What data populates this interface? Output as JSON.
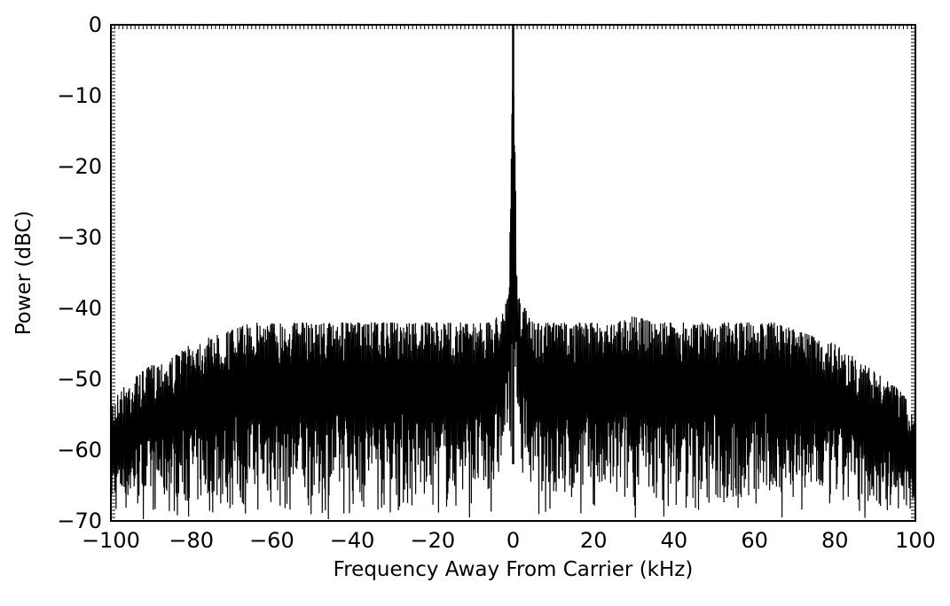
{
  "chart_data": {
    "type": "line",
    "title": "",
    "xlabel": "Frequency Away From Carrier (kHz)",
    "ylabel": "Power (dBC)",
    "xlim": [
      -100,
      100
    ],
    "ylim": [
      -70,
      0
    ],
    "xticks": [
      "-100",
      "-80",
      "-60",
      "-40",
      "-20",
      "0",
      "20",
      "40",
      "60",
      "80",
      "100"
    ],
    "yticks": [
      "0",
      "-10",
      "-20",
      "-30",
      "-40",
      "-50",
      "-60",
      "-70"
    ],
    "grid": false,
    "line_color": "#000000",
    "series": [
      {
        "x": [
          -100,
          -95,
          -90,
          -85,
          -80,
          -75,
          -70,
          -65,
          -60,
          -55,
          -50,
          -45,
          -40,
          -35,
          -30,
          -25,
          -20,
          -15,
          -10,
          -5,
          -1,
          0,
          1,
          5,
          10,
          15,
          20,
          25,
          30,
          35,
          40,
          45,
          50,
          55,
          60,
          65,
          70,
          75,
          80,
          85,
          90,
          95,
          100
        ],
        "upper_envelope": [
          -53,
          -50,
          -48,
          -47,
          -45,
          -44,
          -43,
          -42,
          -42,
          -42,
          -42,
          -42,
          -42,
          -42,
          -42,
          -42,
          -42,
          -42,
          -42,
          -42,
          -38,
          0,
          -38,
          -42,
          -42,
          -42,
          -42,
          -42,
          -41,
          -42,
          -42,
          -42,
          -42,
          -42,
          -42,
          -42,
          -43,
          -44,
          -45,
          -47,
          -49,
          -51,
          -54
        ],
        "lower_envelope": [
          -70,
          -70,
          -70,
          -70,
          -70,
          -70,
          -70,
          -70,
          -70,
          -70,
          -70,
          -70,
          -70,
          -70,
          -70,
          -70,
          -70,
          -70,
          -70,
          -70,
          -60,
          -60,
          -60,
          -70,
          -70,
          -70,
          -70,
          -70,
          -70,
          -70,
          -70,
          -70,
          -70,
          -70,
          -70,
          -70,
          -70,
          -70,
          -70,
          -70,
          -70,
          -70,
          -70
        ]
      }
    ],
    "carrier_peak": {
      "x": 0,
      "y": 0
    }
  }
}
